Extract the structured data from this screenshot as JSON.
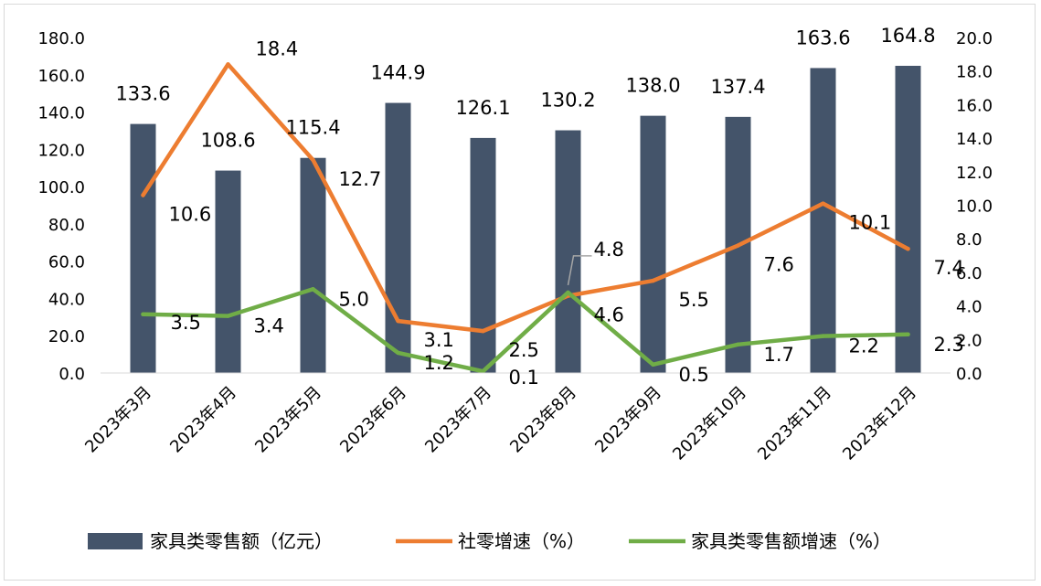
{
  "chart_data": {
    "type": "bar+line",
    "title": "",
    "xlabel": "",
    "ylabel": "",
    "y2label": "",
    "categories": [
      "2023年3月",
      "2023年4月",
      "2023年5月",
      "2023年6月",
      "2023年7月",
      "2023年8月",
      "2023年9月",
      "2023年10月",
      "2023年11月",
      "2023年12月"
    ],
    "ylim": [
      0,
      180
    ],
    "y2lim": [
      0,
      20
    ],
    "y_ticks": [
      "0.0",
      "20.0",
      "40.0",
      "60.0",
      "80.0",
      "100.0",
      "120.0",
      "140.0",
      "160.0",
      "180.0"
    ],
    "y2_ticks": [
      "0.0",
      "2.0",
      "4.0",
      "6.0",
      "8.0",
      "10.0",
      "12.0",
      "14.0",
      "16.0",
      "18.0",
      "20.0"
    ],
    "grid": false,
    "legend_position": "bottom",
    "series": [
      {
        "name": "家具类零售额（亿元）",
        "kind": "bar",
        "axis": "left",
        "color": "#44546a",
        "values": [
          133.6,
          108.6,
          115.4,
          144.9,
          126.1,
          130.2,
          138.0,
          137.4,
          163.6,
          164.8
        ],
        "labels": [
          "133.6",
          "108.6",
          "115.4",
          "144.9",
          "126.1",
          "130.2",
          "138.0",
          "137.4",
          "163.6",
          "164.8"
        ]
      },
      {
        "name": "社零增速（%）",
        "kind": "line",
        "axis": "right",
        "color": "#ed7d31",
        "values": [
          10.6,
          18.4,
          12.7,
          3.1,
          2.5,
          4.6,
          5.5,
          7.6,
          10.1,
          7.4
        ],
        "labels": [
          "10.6",
          "18.4",
          "12.7",
          "3.1",
          "2.5",
          "4.6",
          "5.5",
          "7.6",
          "10.1",
          "7.4"
        ]
      },
      {
        "name": "家具类零售额增速（%）",
        "kind": "line",
        "axis": "right",
        "color": "#70ad47",
        "values": [
          3.5,
          3.4,
          5.0,
          1.2,
          0.1,
          4.8,
          0.5,
          1.7,
          2.2,
          2.3
        ],
        "labels": [
          "3.5",
          "3.4",
          "5.0",
          "1.2",
          "0.1",
          "4.8",
          "0.5",
          "1.7",
          "2.2",
          "2.3"
        ]
      }
    ]
  }
}
